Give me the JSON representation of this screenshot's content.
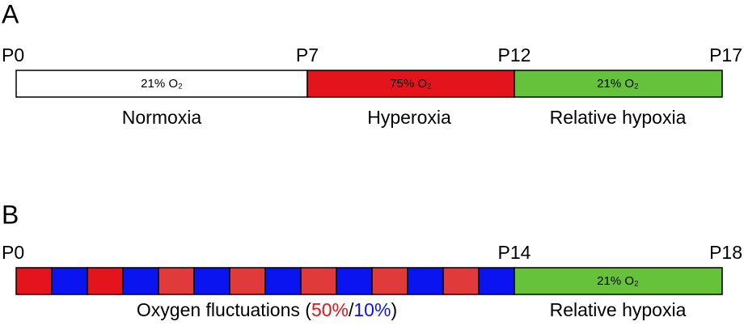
{
  "panel_a": {
    "label": "A",
    "timepoints": [
      "P0",
      "P7",
      "P12",
      "P17"
    ],
    "segments": [
      {
        "text": "21% O₂",
        "phase": "Normoxia"
      },
      {
        "text": "75% O₂",
        "phase": "Hyperoxia"
      },
      {
        "text": "21% O₂",
        "phase": "Relative hypoxia"
      }
    ]
  },
  "panel_b": {
    "label": "B",
    "timepoints": [
      "P0",
      "P14",
      "P18"
    ],
    "fluctuation": {
      "text": "Oxygen fluctuations (",
      "high": "50%",
      "separator": "/",
      "low": "10%",
      "close": ")"
    },
    "segment": {
      "text": "21% O₂",
      "phase": "Relative hypoxia"
    }
  }
}
